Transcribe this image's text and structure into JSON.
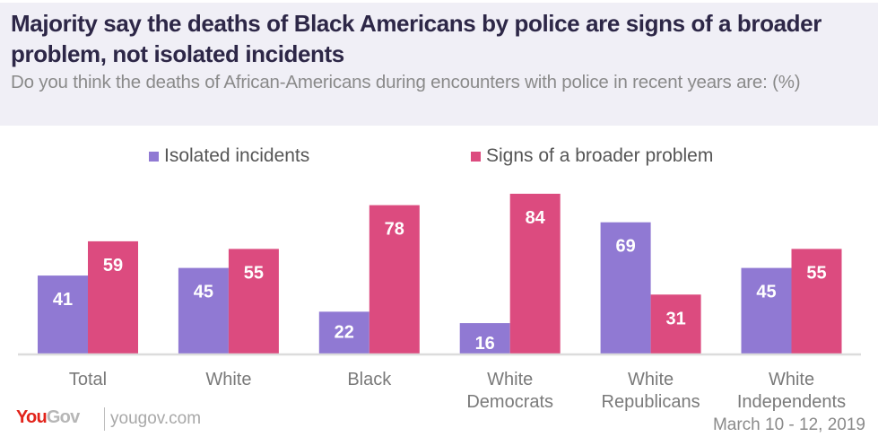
{
  "header": {
    "title": "Majority say the deaths of Black Americans by police are signs of a broader problem, not isolated incidents",
    "subtitle": "Do you think the deaths of African-Americans during encounters with police in recent years are: (%)"
  },
  "footer": {
    "logo_you": "You",
    "logo_gov": "Gov",
    "url": "yougov.com",
    "date": "March 10 - 12, 2019"
  },
  "colors": {
    "isolated": "#9079d3",
    "broader": "#dc4b7f",
    "baseline": "#dcdcdc",
    "header_bg": "#f0eff6"
  },
  "chart_data": {
    "type": "bar",
    "title": "Majority say the deaths of Black Americans by police are signs of a broader problem, not isolated incidents",
    "subtitle": "Do you think the deaths of African-Americans during encounters with police in recent years are: (%)",
    "xlabel": "",
    "ylabel": "",
    "ylim": [
      0,
      100
    ],
    "grid": false,
    "legend_position": "top",
    "categories": [
      [
        "Total"
      ],
      [
        "White"
      ],
      [
        "Black"
      ],
      [
        "White",
        "Democrats"
      ],
      [
        "White",
        "Republicans"
      ],
      [
        "White",
        "Independents"
      ]
    ],
    "series": [
      {
        "name": "Isolated incidents",
        "color": "#9079d3",
        "values": [
          41,
          45,
          22,
          16,
          69,
          45
        ]
      },
      {
        "name": "Signs of a broader problem",
        "color": "#dc4b7f",
        "values": [
          59,
          55,
          78,
          84,
          31,
          55
        ]
      }
    ]
  }
}
